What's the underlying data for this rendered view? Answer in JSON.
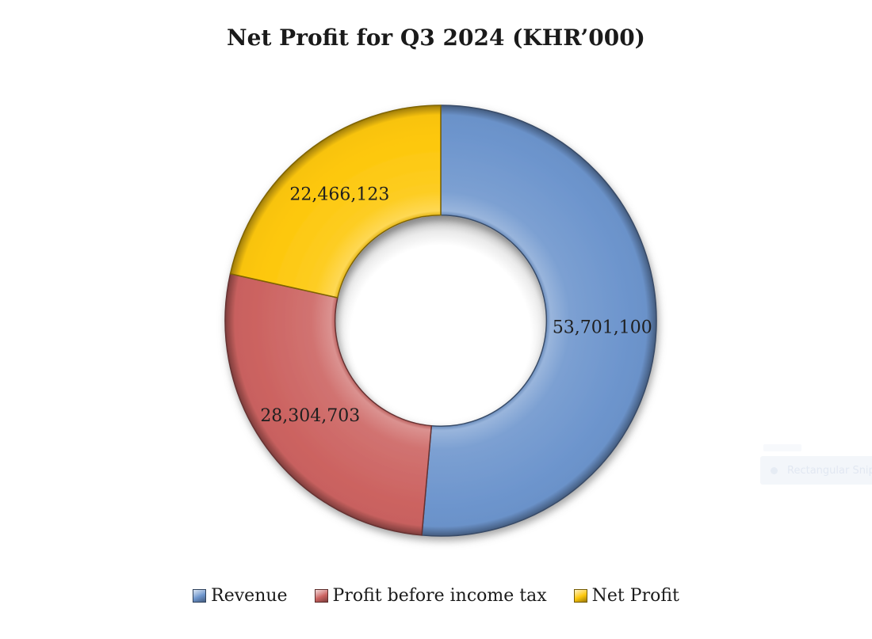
{
  "chart_data": {
    "type": "pie",
    "subtype": "donut",
    "title": "Net Profit for Q3 2024 (KHR’000)",
    "categories": [
      "Revenue",
      "Profit before income tax",
      "Net Profit"
    ],
    "values": [
      53701100,
      28304703,
      22466123
    ],
    "data_labels": [
      "53,701,100",
      "28,304,703",
      "22,466,123"
    ],
    "colors": [
      "#6d95cd",
      "#cc6361",
      "#fdc70a"
    ],
    "start_angle_deg": 0,
    "direction": "clockwise",
    "hole_ratio": 0.49,
    "legend_position": "bottom",
    "legend": [
      "Revenue",
      "Profit before income tax",
      "Net Profit"
    ],
    "title_color": "#1a1a1a",
    "label_color": "#1f1f1f",
    "effects": "3d-bevel-with-shadow"
  },
  "overlay": {
    "snip_tooltip": {
      "label": "Rectangular Snip"
    }
  }
}
